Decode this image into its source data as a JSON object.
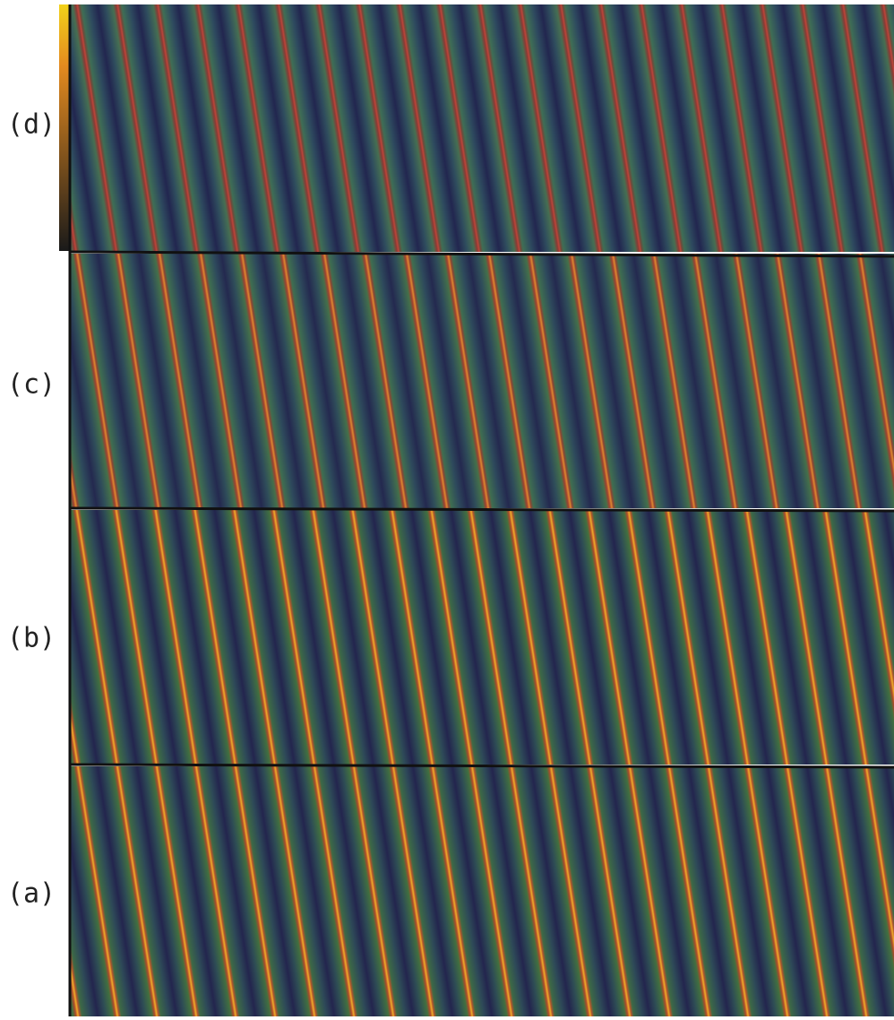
{
  "panels": [
    {
      "label": "(d)"
    },
    {
      "label": "(c)"
    },
    {
      "label": "(b)"
    },
    {
      "label": "(a)"
    }
  ]
}
